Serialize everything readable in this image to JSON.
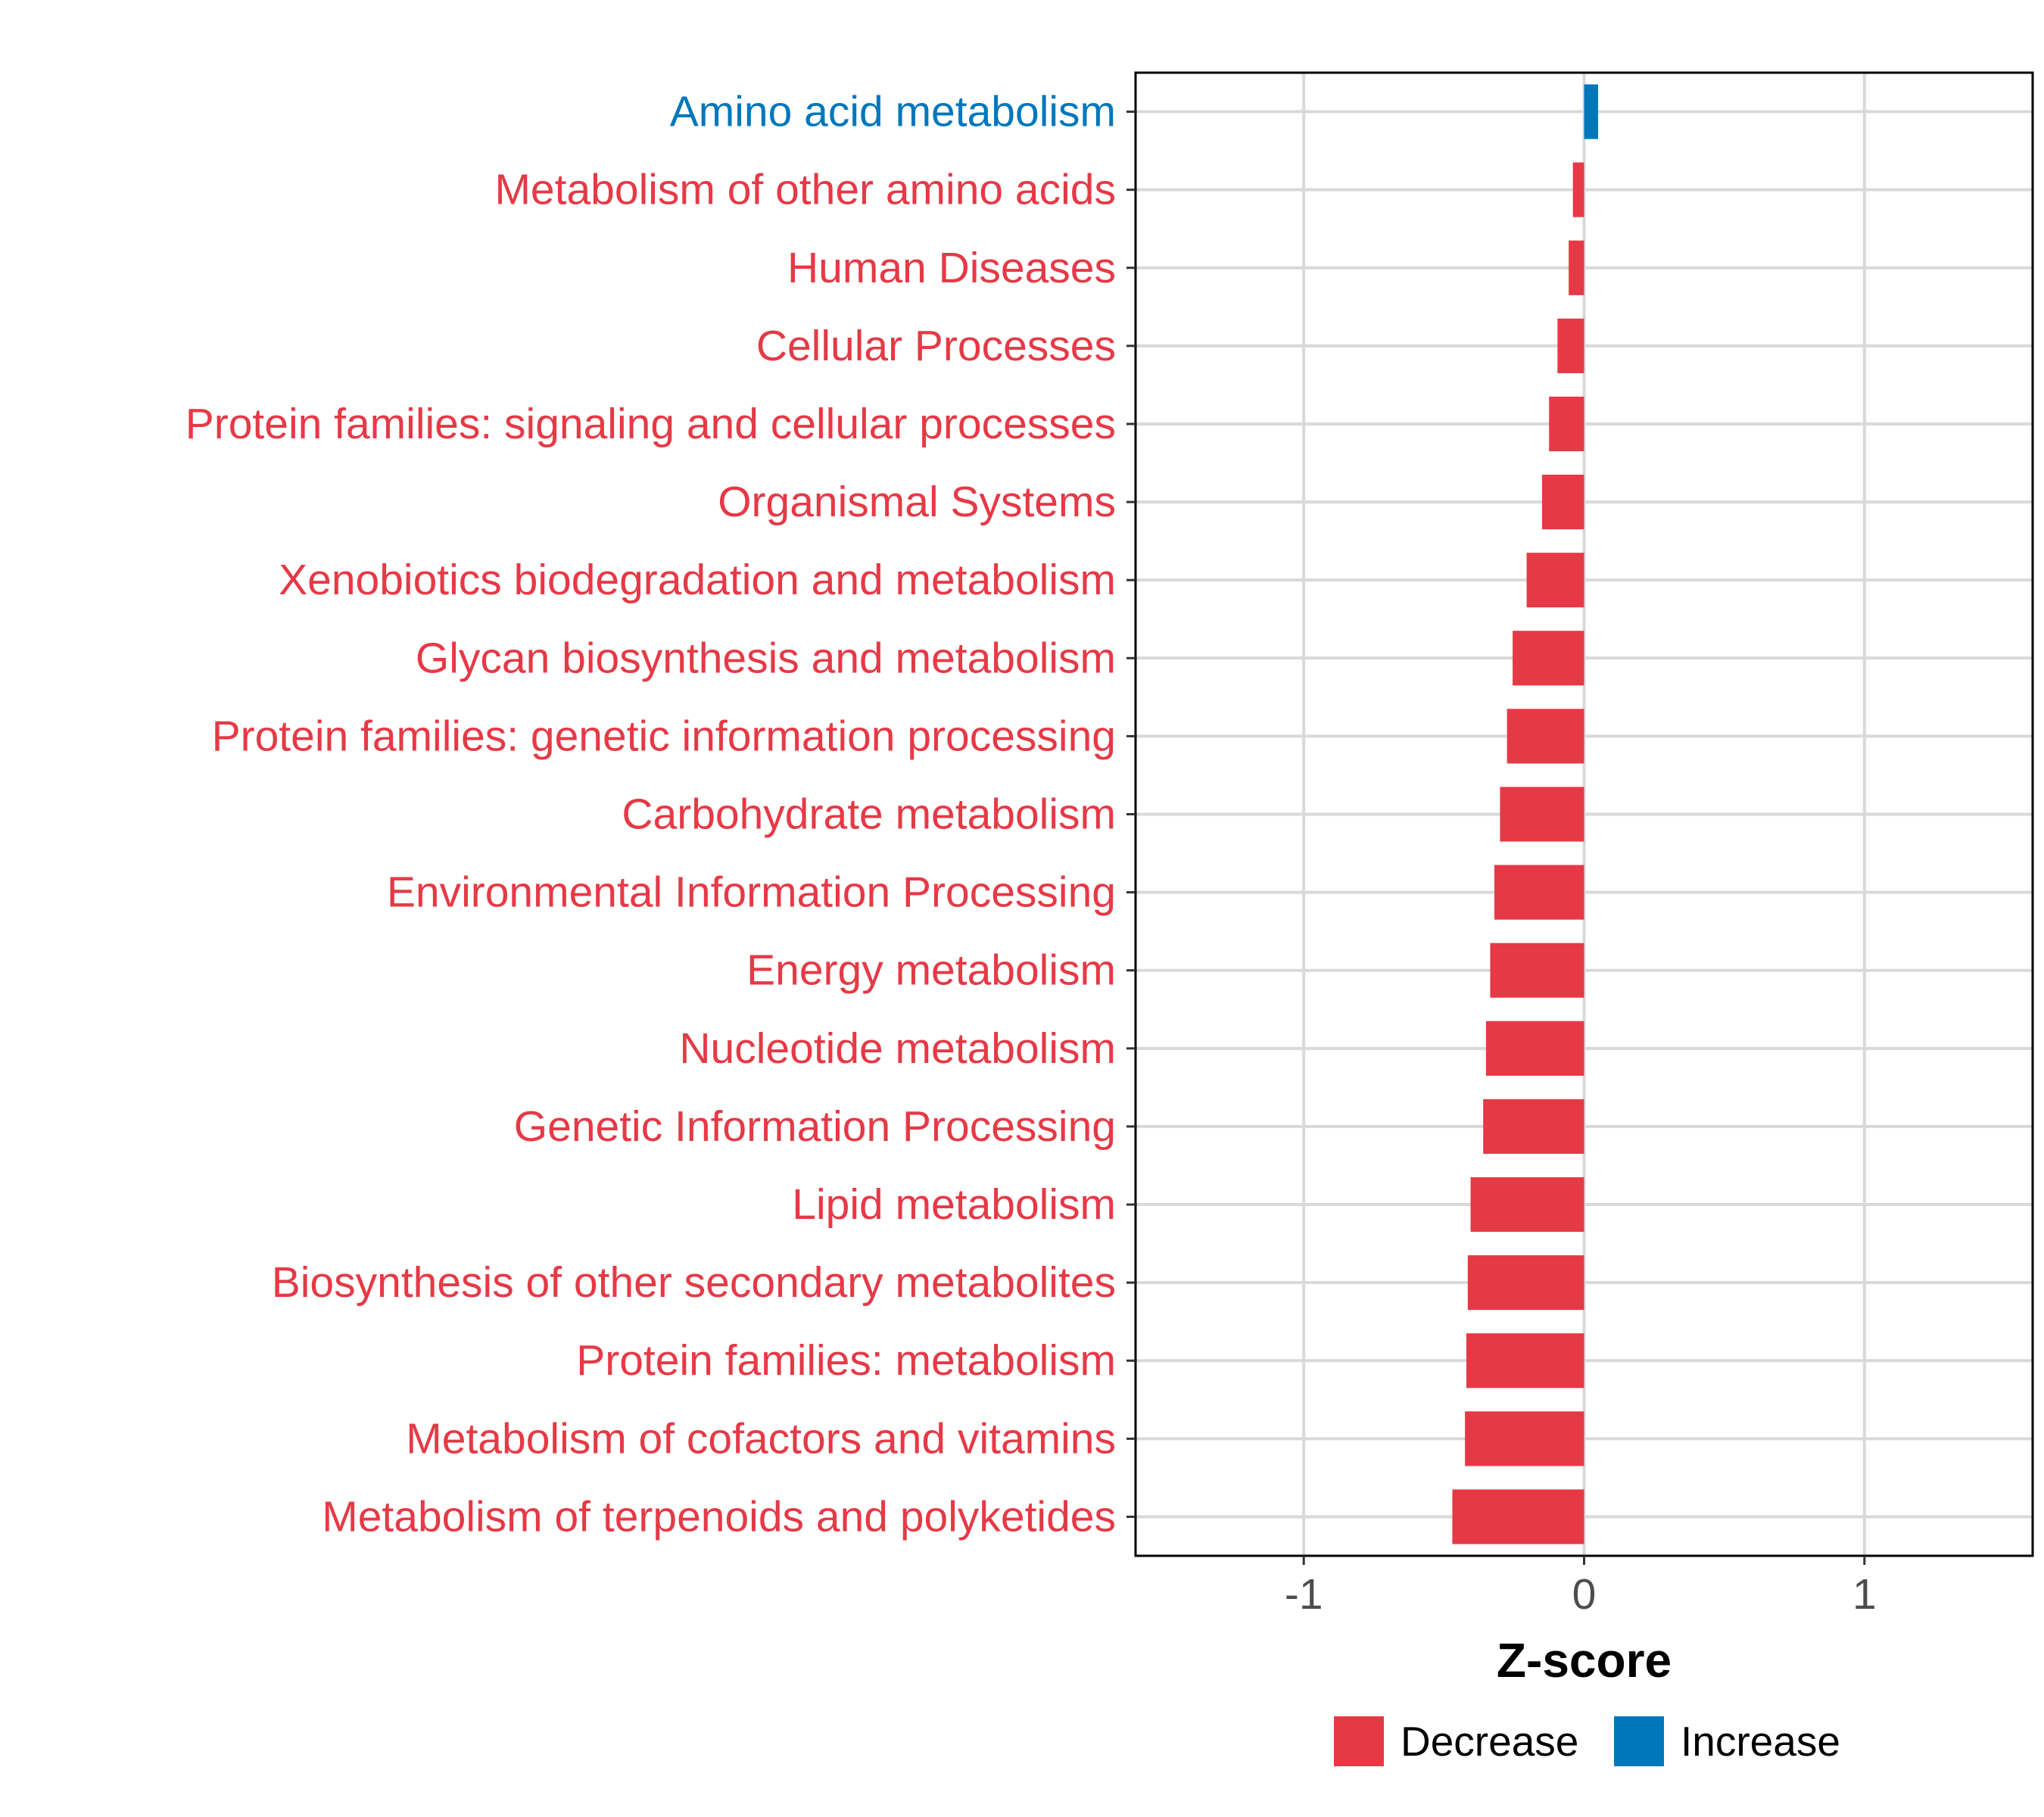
{
  "chart_data": {
    "type": "bar",
    "orientation": "horizontal",
    "xlabel": "Z-score",
    "xlim": [
      -1.6,
      1.6
    ],
    "xticks": [
      -1,
      0,
      1
    ],
    "xtick_labels": [
      "-1",
      "0",
      "1"
    ],
    "grid": true,
    "categories": [
      "Amino acid metabolism",
      "Metabolism of other amino acids",
      "Human Diseases",
      "Cellular Processes",
      "Protein families: signaling and cellular processes",
      "Organismal Systems",
      "Xenobiotics biodegradation and metabolism",
      "Glycan biosynthesis and metabolism",
      "Protein families: genetic information processing",
      "Carbohydrate metabolism",
      "Environmental Information Processing",
      "Energy metabolism",
      "Nucleotide metabolism",
      "Genetic Information Processing",
      "Lipid metabolism",
      "Biosynthesis of other secondary metabolites",
      "Protein families: metabolism",
      "Metabolism of cofactors and vitamins",
      "Metabolism of terpenoids and polyketides"
    ],
    "values": [
      0.05,
      -0.04,
      -0.055,
      -0.095,
      -0.125,
      -0.15,
      -0.205,
      -0.255,
      -0.275,
      -0.3,
      -0.32,
      -0.335,
      -0.35,
      -0.36,
      -0.405,
      -0.415,
      -0.42,
      -0.425,
      -0.47
    ],
    "groups": [
      "Increase",
      "Decrease",
      "Decrease",
      "Decrease",
      "Decrease",
      "Decrease",
      "Decrease",
      "Decrease",
      "Decrease",
      "Decrease",
      "Decrease",
      "Decrease",
      "Decrease",
      "Decrease",
      "Decrease",
      "Decrease",
      "Decrease",
      "Decrease",
      "Decrease"
    ],
    "legend": {
      "position": "bottom",
      "items": [
        {
          "label": "Decrease",
          "color": "#E63946"
        },
        {
          "label": "Increase",
          "color": "#0077BB"
        }
      ]
    }
  }
}
